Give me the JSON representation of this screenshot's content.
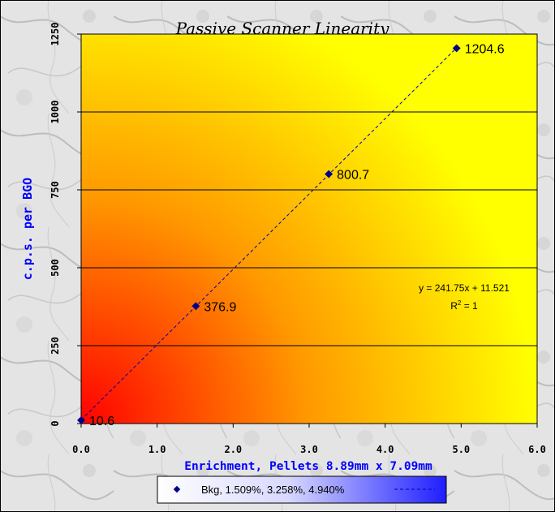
{
  "chart_data": {
    "type": "scatter",
    "title": "Passive Scanner Linearity",
    "xlabel": "Enrichment, Pellets 8.89mm x 7.09mm",
    "ylabel": "c.p.s. per BGO",
    "xlim": [
      0,
      6
    ],
    "ylim": [
      0,
      1250
    ],
    "xticks": [
      "0.0",
      "1.0",
      "2.0",
      "3.0",
      "4.0",
      "5.0",
      "6.0"
    ],
    "yticks": [
      "0",
      "250",
      "500",
      "750",
      "1000",
      "1250"
    ],
    "grid": "horizontal",
    "series": [
      {
        "name": "Bkg, 1.509%, 3.258%, 4.940%",
        "x": [
          0,
          1.509,
          3.258,
          4.94
        ],
        "y": [
          10.6,
          376.9,
          800.7,
          1204.6
        ],
        "labels": [
          "10.6",
          "376.9",
          "800.7",
          "1204.6"
        ],
        "color": "#00008b"
      }
    ],
    "trendline": {
      "slope": 241.75,
      "intercept": 11.521,
      "equation": "y = 241.75x + 11.521",
      "r2_label": "R",
      "r2_sup": "2",
      "r2_value": " = 1"
    },
    "legend": {
      "position": "bottom",
      "label": "Bkg, 1.509%, 3.258%, 4.940%"
    },
    "colors": {
      "plot_hot": "#ff0000",
      "plot_warm": "#ff9900",
      "plot_cool": "#ffff00",
      "axis_title": "#0000ff",
      "marker": "#00008b",
      "frame": "#000000"
    }
  }
}
